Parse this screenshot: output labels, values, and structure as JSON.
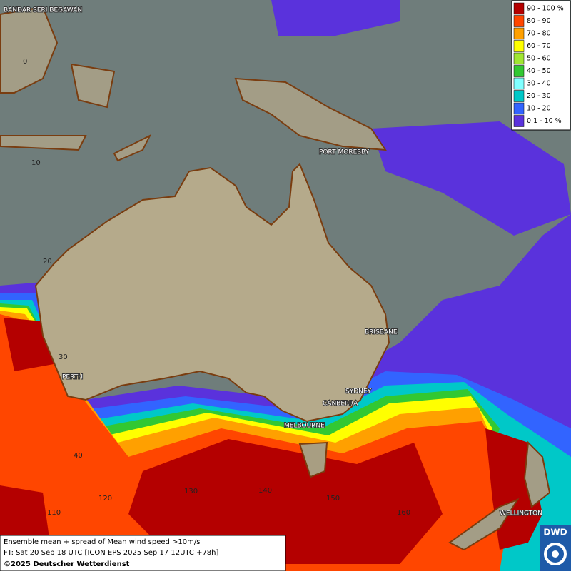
{
  "legend": {
    "items": [
      {
        "label": "90 - 100 %",
        "color": "#b40000"
      },
      {
        "label": "80 - 90",
        "color": "#ff4600"
      },
      {
        "label": "70 - 80",
        "color": "#ffa000"
      },
      {
        "label": "60 - 70",
        "color": "#ffff00"
      },
      {
        "label": "50 - 60",
        "color": "#a0e632"
      },
      {
        "label": "40 - 50",
        "color": "#32c832"
      },
      {
        "label": "30 - 40",
        "color": "#80ffff"
      },
      {
        "label": "20 - 30",
        "color": "#00c8c8"
      },
      {
        "label": "10 - 20",
        "color": "#3264ff"
      },
      {
        "label": "0.1 - 10 %",
        "color": "#5a32dc"
      }
    ]
  },
  "grid_labels": {
    "latitudes": [
      "0",
      "10",
      "20",
      "30",
      "40"
    ],
    "longitudes": [
      "110",
      "120",
      "130",
      "140",
      "150",
      "160"
    ]
  },
  "cities": [
    "BANDAR SERI BEGAWAN",
    "PORT MORESBY",
    "BRISBANE",
    "PERTH",
    "SYDNEY",
    "CANBERRA",
    "MELBOURNE",
    "WELLINGTON"
  ],
  "caption": {
    "lines": [
      "Ensemble mean + spread of Mean wind speed >10m/s",
      "FT: Sat 20 Sep 18 UTC [ICON EPS 2025 Sep 17 12UTC +78h]"
    ],
    "copyright": "©2025 Deutscher Wetterdienst"
  },
  "logo": "DWD"
}
